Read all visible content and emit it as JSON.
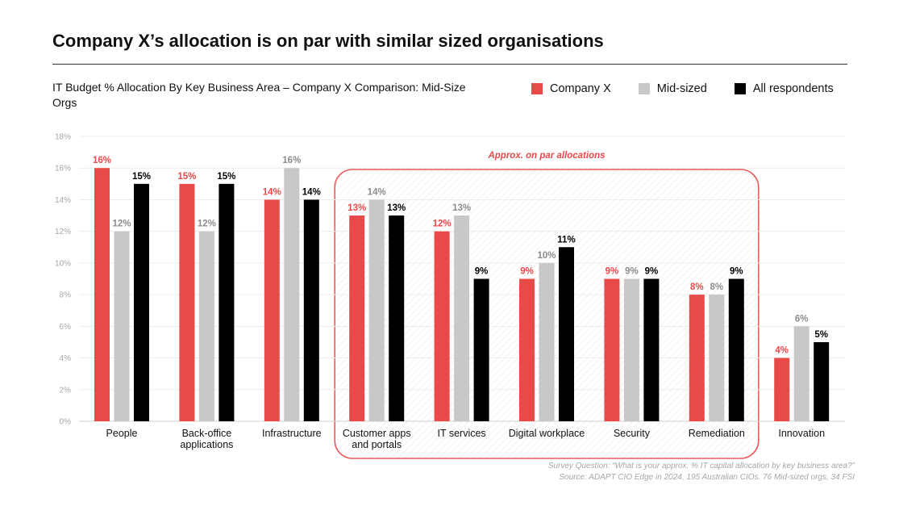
{
  "title": "Company X’s allocation is on par with similar sized organisations",
  "subtitle": "IT Budget % Allocation By Key Business Area – Company X Comparison: Mid-Size Orgs",
  "footnotes": {
    "survey_question": "Survey Question: “What is your approx. % IT capital allocation by key business area?”",
    "source": "Source: ADAPT CIO Edge in 2024, 195 Australian CIOs. 76 Mid-sized orgs, 34 FSI"
  },
  "chart_data": {
    "type": "bar",
    "title": "IT Budget % Allocation By Key Business Area – Company X Comparison: Mid-Size Orgs",
    "ylim": [
      0,
      18
    ],
    "y_ticks": [
      "0%",
      "2%",
      "4%",
      "6%",
      "8%",
      "10%",
      "12%",
      "14%",
      "16%",
      "18%"
    ],
    "grid": true,
    "legend_position": "top-right",
    "categories": [
      [
        "People"
      ],
      [
        "Back-office",
        "applications"
      ],
      [
        "Infrastructure"
      ],
      [
        "Customer apps",
        "and portals"
      ],
      [
        "IT services"
      ],
      [
        "Digital workplace"
      ],
      [
        "Security"
      ],
      [
        "Remediation"
      ],
      [
        "Innovation"
      ]
    ],
    "series": [
      {
        "name": "Company X",
        "color": "#e84a4a",
        "label_color": "#e84a4a",
        "values": [
          16,
          15,
          14,
          13,
          12,
          9,
          9,
          8,
          4
        ]
      },
      {
        "name": "Mid-sized",
        "color": "#c8c8c8",
        "label_color": "#8c8c8c",
        "values": [
          12,
          12,
          16,
          14,
          13,
          10,
          9,
          8,
          6
        ]
      },
      {
        "name": "All respondents",
        "color": "#000000",
        "label_color": "#000000",
        "values": [
          15,
          15,
          14,
          13,
          9,
          11,
          9,
          9,
          5
        ]
      }
    ],
    "annotation": {
      "text": "Approx. on par allocations",
      "color": "#e84a4a",
      "covers_categories": [
        "Customer apps and portals",
        "IT services",
        "Digital workplace",
        "Security",
        "Remediation"
      ]
    }
  }
}
